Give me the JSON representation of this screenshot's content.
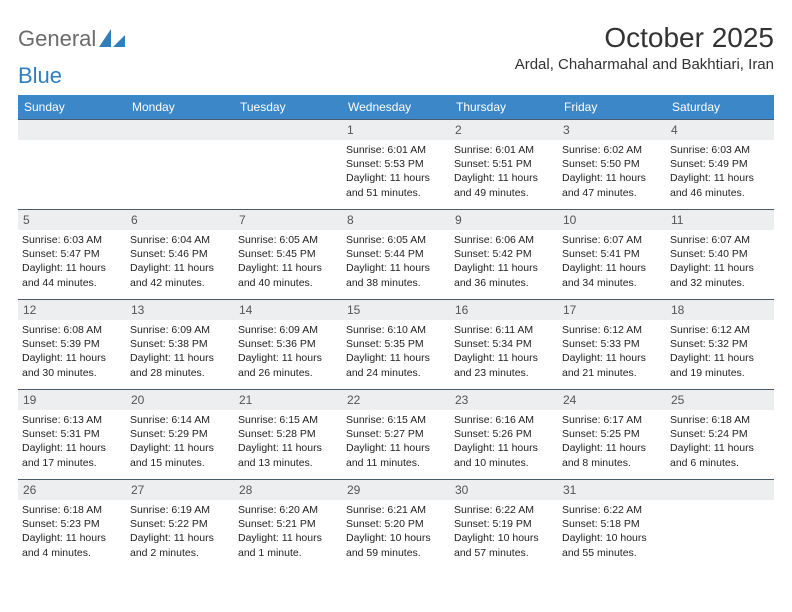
{
  "logo": {
    "text_a": "General",
    "text_b": "Blue",
    "shape_color": "#2f7fbf"
  },
  "title": "October 2025",
  "location": "Ardal, Chaharmahal and Bakhtiari, Iran",
  "day_headers": [
    "Sunday",
    "Monday",
    "Tuesday",
    "Wednesday",
    "Thursday",
    "Friday",
    "Saturday"
  ],
  "colors": {
    "header_bg": "#3b87c8",
    "daynum_bg": "#eceeef",
    "daynum_border": "#4a5a6a",
    "text": "#222222"
  },
  "weeks": [
    [
      {
        "n": "",
        "empty": true
      },
      {
        "n": "",
        "empty": true
      },
      {
        "n": "",
        "empty": true
      },
      {
        "n": "1",
        "sunrise": "Sunrise: 6:01 AM",
        "sunset": "Sunset: 5:53 PM",
        "daylight": "Daylight: 11 hours and 51 minutes."
      },
      {
        "n": "2",
        "sunrise": "Sunrise: 6:01 AM",
        "sunset": "Sunset: 5:51 PM",
        "daylight": "Daylight: 11 hours and 49 minutes."
      },
      {
        "n": "3",
        "sunrise": "Sunrise: 6:02 AM",
        "sunset": "Sunset: 5:50 PM",
        "daylight": "Daylight: 11 hours and 47 minutes."
      },
      {
        "n": "4",
        "sunrise": "Sunrise: 6:03 AM",
        "sunset": "Sunset: 5:49 PM",
        "daylight": "Daylight: 11 hours and 46 minutes."
      }
    ],
    [
      {
        "n": "5",
        "sunrise": "Sunrise: 6:03 AM",
        "sunset": "Sunset: 5:47 PM",
        "daylight": "Daylight: 11 hours and 44 minutes."
      },
      {
        "n": "6",
        "sunrise": "Sunrise: 6:04 AM",
        "sunset": "Sunset: 5:46 PM",
        "daylight": "Daylight: 11 hours and 42 minutes."
      },
      {
        "n": "7",
        "sunrise": "Sunrise: 6:05 AM",
        "sunset": "Sunset: 5:45 PM",
        "daylight": "Daylight: 11 hours and 40 minutes."
      },
      {
        "n": "8",
        "sunrise": "Sunrise: 6:05 AM",
        "sunset": "Sunset: 5:44 PM",
        "daylight": "Daylight: 11 hours and 38 minutes."
      },
      {
        "n": "9",
        "sunrise": "Sunrise: 6:06 AM",
        "sunset": "Sunset: 5:42 PM",
        "daylight": "Daylight: 11 hours and 36 minutes."
      },
      {
        "n": "10",
        "sunrise": "Sunrise: 6:07 AM",
        "sunset": "Sunset: 5:41 PM",
        "daylight": "Daylight: 11 hours and 34 minutes."
      },
      {
        "n": "11",
        "sunrise": "Sunrise: 6:07 AM",
        "sunset": "Sunset: 5:40 PM",
        "daylight": "Daylight: 11 hours and 32 minutes."
      }
    ],
    [
      {
        "n": "12",
        "sunrise": "Sunrise: 6:08 AM",
        "sunset": "Sunset: 5:39 PM",
        "daylight": "Daylight: 11 hours and 30 minutes."
      },
      {
        "n": "13",
        "sunrise": "Sunrise: 6:09 AM",
        "sunset": "Sunset: 5:38 PM",
        "daylight": "Daylight: 11 hours and 28 minutes."
      },
      {
        "n": "14",
        "sunrise": "Sunrise: 6:09 AM",
        "sunset": "Sunset: 5:36 PM",
        "daylight": "Daylight: 11 hours and 26 minutes."
      },
      {
        "n": "15",
        "sunrise": "Sunrise: 6:10 AM",
        "sunset": "Sunset: 5:35 PM",
        "daylight": "Daylight: 11 hours and 24 minutes."
      },
      {
        "n": "16",
        "sunrise": "Sunrise: 6:11 AM",
        "sunset": "Sunset: 5:34 PM",
        "daylight": "Daylight: 11 hours and 23 minutes."
      },
      {
        "n": "17",
        "sunrise": "Sunrise: 6:12 AM",
        "sunset": "Sunset: 5:33 PM",
        "daylight": "Daylight: 11 hours and 21 minutes."
      },
      {
        "n": "18",
        "sunrise": "Sunrise: 6:12 AM",
        "sunset": "Sunset: 5:32 PM",
        "daylight": "Daylight: 11 hours and 19 minutes."
      }
    ],
    [
      {
        "n": "19",
        "sunrise": "Sunrise: 6:13 AM",
        "sunset": "Sunset: 5:31 PM",
        "daylight": "Daylight: 11 hours and 17 minutes."
      },
      {
        "n": "20",
        "sunrise": "Sunrise: 6:14 AM",
        "sunset": "Sunset: 5:29 PM",
        "daylight": "Daylight: 11 hours and 15 minutes."
      },
      {
        "n": "21",
        "sunrise": "Sunrise: 6:15 AM",
        "sunset": "Sunset: 5:28 PM",
        "daylight": "Daylight: 11 hours and 13 minutes."
      },
      {
        "n": "22",
        "sunrise": "Sunrise: 6:15 AM",
        "sunset": "Sunset: 5:27 PM",
        "daylight": "Daylight: 11 hours and 11 minutes."
      },
      {
        "n": "23",
        "sunrise": "Sunrise: 6:16 AM",
        "sunset": "Sunset: 5:26 PM",
        "daylight": "Daylight: 11 hours and 10 minutes."
      },
      {
        "n": "24",
        "sunrise": "Sunrise: 6:17 AM",
        "sunset": "Sunset: 5:25 PM",
        "daylight": "Daylight: 11 hours and 8 minutes."
      },
      {
        "n": "25",
        "sunrise": "Sunrise: 6:18 AM",
        "sunset": "Sunset: 5:24 PM",
        "daylight": "Daylight: 11 hours and 6 minutes."
      }
    ],
    [
      {
        "n": "26",
        "sunrise": "Sunrise: 6:18 AM",
        "sunset": "Sunset: 5:23 PM",
        "daylight": "Daylight: 11 hours and 4 minutes."
      },
      {
        "n": "27",
        "sunrise": "Sunrise: 6:19 AM",
        "sunset": "Sunset: 5:22 PM",
        "daylight": "Daylight: 11 hours and 2 minutes."
      },
      {
        "n": "28",
        "sunrise": "Sunrise: 6:20 AM",
        "sunset": "Sunset: 5:21 PM",
        "daylight": "Daylight: 11 hours and 1 minute."
      },
      {
        "n": "29",
        "sunrise": "Sunrise: 6:21 AM",
        "sunset": "Sunset: 5:20 PM",
        "daylight": "Daylight: 10 hours and 59 minutes."
      },
      {
        "n": "30",
        "sunrise": "Sunrise: 6:22 AM",
        "sunset": "Sunset: 5:19 PM",
        "daylight": "Daylight: 10 hours and 57 minutes."
      },
      {
        "n": "31",
        "sunrise": "Sunrise: 6:22 AM",
        "sunset": "Sunset: 5:18 PM",
        "daylight": "Daylight: 10 hours and 55 minutes."
      },
      {
        "n": "",
        "empty": true
      }
    ]
  ]
}
